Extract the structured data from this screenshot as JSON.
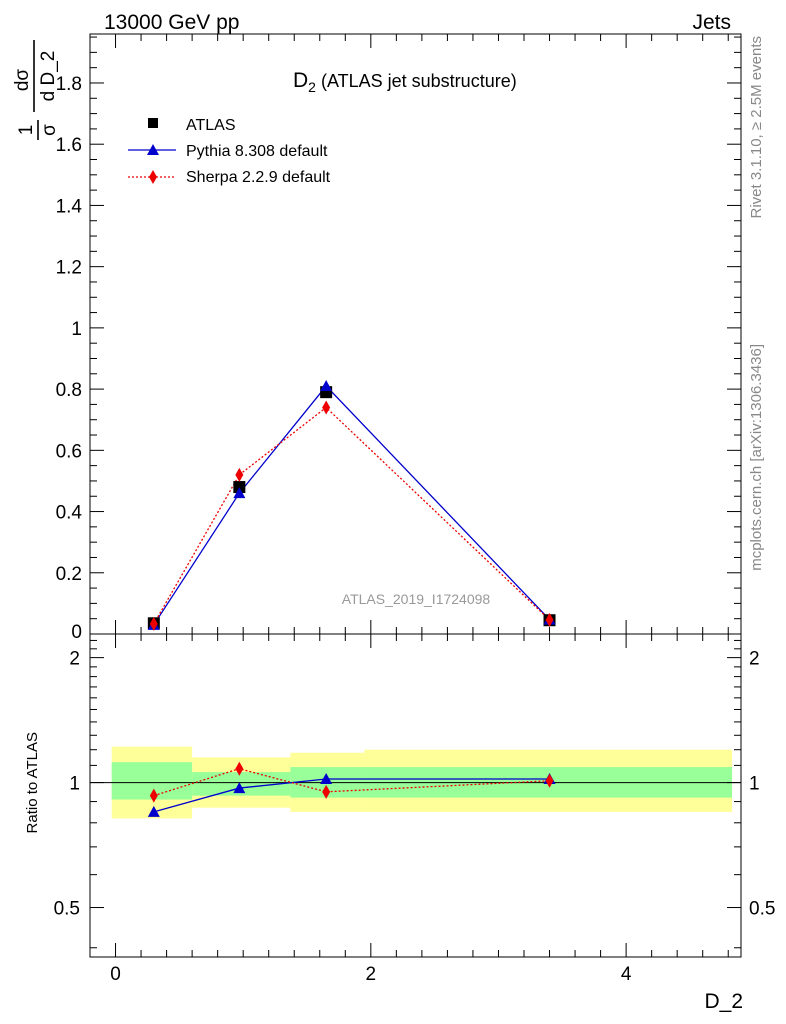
{
  "header": {
    "left": "13000 GeV pp",
    "right": "Jets"
  },
  "side_labels": {
    "top": "Rivet 3.1.10, ≥ 2.5M events",
    "bottom": "mcplots.cern.ch [arXiv:1306.3436]"
  },
  "chart_data": [
    {
      "type": "scatter",
      "title": "D₂ (ATLAS jet substructure)",
      "title_main": "D",
      "title_sub": "2",
      "title_rest": " (ATLAS jet substructure)",
      "watermark": "ATLAS_2019_I1724098",
      "ylabel": "dσ/dD_2 · 1/σ",
      "ylabel_parts": {
        "a": "1",
        "b": "σ",
        "c": "d",
        "d": "dσ",
        "e": "d D_2"
      },
      "xlim": [
        -0.2,
        4.9
      ],
      "ylim": [
        0,
        1.96
      ],
      "yticks": [
        0.2,
        0.4,
        0.6,
        0.8,
        1,
        1.2,
        1.4,
        1.6,
        1.8
      ],
      "yticklabels": [
        "0.2",
        "0.4",
        "0.6",
        "0.8",
        "1",
        "1.2",
        "1.4",
        "1.6",
        "1.8"
      ],
      "ytick_zero_label": "0",
      "legend_position": "top-left",
      "series": [
        {
          "name": "ATLAS",
          "marker": "square",
          "color": "#000000",
          "x": [
            0.3,
            0.97,
            1.65,
            3.4
          ],
          "y": [
            0.035,
            0.48,
            0.79,
            0.045
          ]
        },
        {
          "name": "Pythia 8.308 default",
          "marker": "triangle",
          "color": "#0000cc",
          "line": "solid",
          "x": [
            0.3,
            0.97,
            1.65,
            3.4
          ],
          "y": [
            0.03,
            0.46,
            0.81,
            0.047
          ]
        },
        {
          "name": "Sherpa 2.2.9 default",
          "marker": "diamond",
          "color": "#ee0000",
          "line": "dotted",
          "x": [
            0.3,
            0.97,
            1.65,
            3.4
          ],
          "y": [
            0.033,
            0.52,
            0.74,
            0.046
          ]
        }
      ]
    },
    {
      "type": "line",
      "ylabel": "Ratio to ATLAS",
      "xlabel": "D_2",
      "xlim": [
        -0.2,
        4.9
      ],
      "ylim": [
        0.38,
        2.28
      ],
      "xticks": [
        0,
        2,
        4
      ],
      "xticklabels": [
        "0",
        "2",
        "4"
      ],
      "yticks": [
        0.5,
        1,
        2
      ],
      "yticklabels": [
        "0.5",
        "1",
        "2"
      ],
      "uncertainty_bands": [
        {
          "x": [
            -0.03,
            0.6
          ],
          "inner": [
            0.91,
            1.12
          ],
          "outer": [
            0.82,
            1.22
          ]
        },
        {
          "x": [
            0.6,
            1.37
          ],
          "inner": [
            0.93,
            1.06
          ],
          "outer": [
            0.87,
            1.15
          ]
        },
        {
          "x": [
            1.37,
            1.95
          ],
          "inner": [
            0.92,
            1.09
          ],
          "outer": [
            0.85,
            1.18
          ]
        },
        {
          "x": [
            1.95,
            4.83
          ],
          "inner": [
            0.92,
            1.09
          ],
          "outer": [
            0.85,
            1.2
          ]
        }
      ],
      "series": [
        {
          "name": "Pythia 8.308 default",
          "color": "#0000cc",
          "marker": "triangle",
          "x": [
            0.3,
            0.97,
            1.65,
            3.4
          ],
          "y": [
            0.85,
            0.97,
            1.02,
            1.02
          ]
        },
        {
          "name": "Sherpa 2.2.9 default",
          "color": "#ee0000",
          "marker": "diamond",
          "x": [
            0.3,
            0.97,
            1.65,
            3.4
          ],
          "y": [
            0.93,
            1.08,
            0.95,
            1.01
          ]
        }
      ]
    }
  ]
}
